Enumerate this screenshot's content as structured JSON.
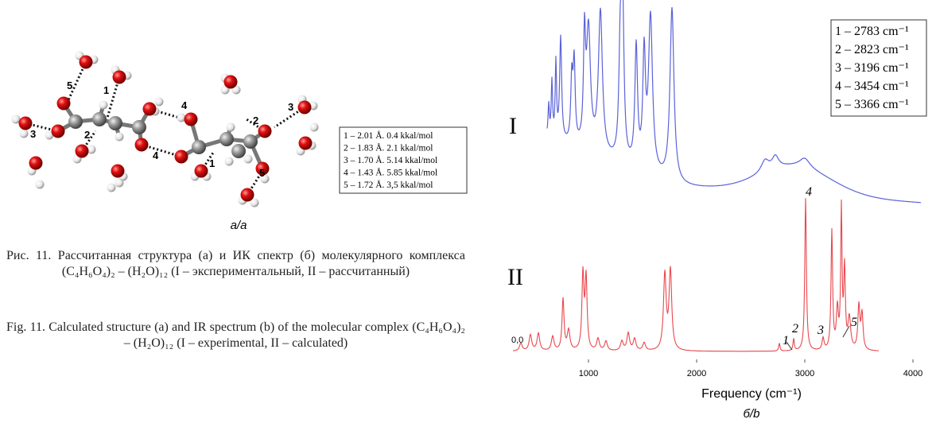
{
  "figure_a": {
    "atom_labels": [
      "5",
      "1",
      "4",
      "3",
      "2",
      "4",
      "2",
      "3",
      "1",
      "5"
    ],
    "legend": [
      "1 – 2.01 Å. 0.4 kkal/mol",
      "2 – 1.83 Å. 2.1 kkal/mol",
      "3 – 1.70 Å. 5.14 kkal/mol",
      "4 – 1.43 Å. 5.85 kkal/mol",
      "5 – 1.72 Å. 3,5 kkal/mol"
    ],
    "label": "a/a"
  },
  "caption_ru": "Рис. 11. Рассчитанная структура (а) и ИК спектр (б) молекулярного комплекса (C₄H₆O₄)₂ – (H₂O)₁₂ (I – экс­периментальный, II – рассчитанный)",
  "caption_en": "Fig. 11. Calculated structure (a) and IR spectrum (b) of the molecular complex (C₄H₆O₄)₂ – (H₂O)₁₂ (I – experimental, II – calculated)",
  "figure_b": {
    "legend": [
      "1 – 2783 cm⁻¹",
      "2 – 2823 cm⁻¹",
      "3 – 3196 cm⁻¹",
      "4 – 3454 cm⁻¹",
      "5 – 3366 cm⁻¹"
    ],
    "trace_labels": [
      "I",
      "II"
    ],
    "peak_labels": [
      "4",
      "1",
      "2",
      "3",
      "5"
    ],
    "zero_label": "0,0",
    "xticks": [
      1000,
      2000,
      3000,
      4000
    ],
    "x_label": "Frequency (cm⁻¹)",
    "label": "б/b"
  }
}
